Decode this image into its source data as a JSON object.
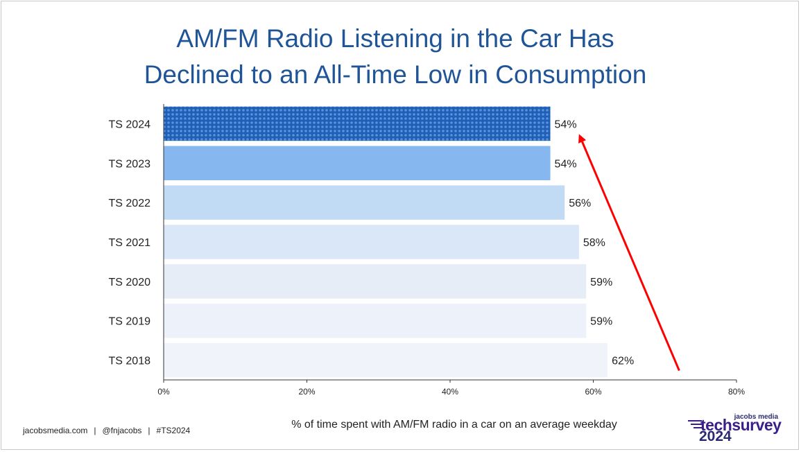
{
  "chart_data": {
    "type": "bar",
    "orientation": "horizontal",
    "title_lines": [
      "AM/FM Radio Listening in the Car Has",
      "Declined to an All-Time Low in Consumption"
    ],
    "categories": [
      "TS 2024",
      "TS 2023",
      "TS 2022",
      "TS 2021",
      "TS 2020",
      "TS 2019",
      "TS 2018"
    ],
    "values": [
      54,
      54,
      56,
      58,
      59,
      59,
      62
    ],
    "value_labels": [
      "54%",
      "54%",
      "56%",
      "58%",
      "59%",
      "59%",
      "62%"
    ],
    "bar_colors": [
      "#2e6fc9",
      "#86b7ef",
      "#c2dbf5",
      "#d9e7f8",
      "#e6edf7",
      "#edf1f9",
      "#f0f3fa"
    ],
    "highlight_pattern": "checker",
    "xlabel": "% of time spent with AM/FM radio in a car on an average weekday",
    "xlim": [
      0,
      80
    ],
    "xticks": [
      0,
      20,
      40,
      60,
      80
    ],
    "xtick_labels": [
      "0%",
      "20%",
      "40%",
      "60%",
      "80%"
    ],
    "grid": false,
    "annotation": {
      "type": "arrow",
      "color": "#ff0000",
      "from": [
        72,
        "TS 2018"
      ],
      "to": [
        58,
        "TS 2024"
      ]
    }
  },
  "footer": {
    "site": "jacobsmedia.com",
    "separator": "|",
    "handle": "@fnjacobs",
    "hashtag": "#TS2024"
  },
  "logo": {
    "small": "jacobs media",
    "main": "techsurvey",
    "year": "2024"
  }
}
